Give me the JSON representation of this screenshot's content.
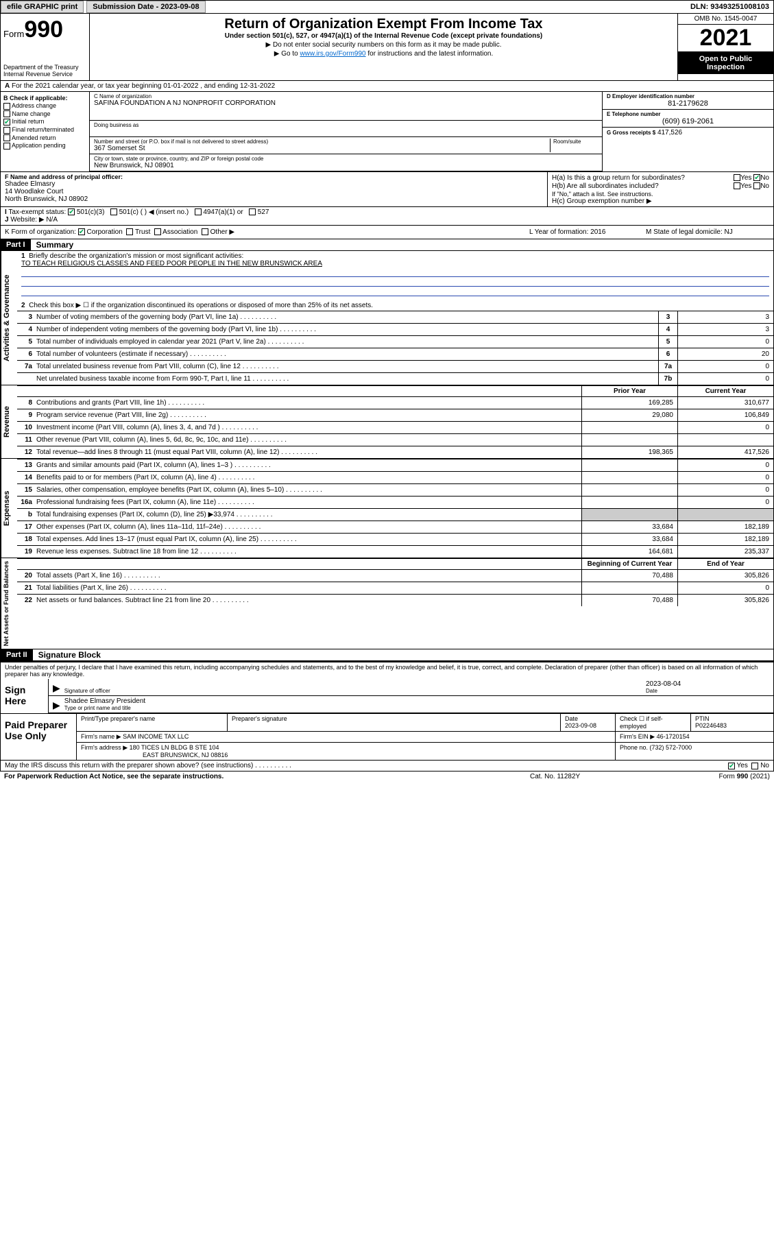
{
  "topbar": {
    "efile": "efile GRAPHIC print",
    "submission_label": "Submission Date - 2023-09-08",
    "dln": "DLN: 93493251008103"
  },
  "header": {
    "form": "Form",
    "form_num": "990",
    "dept": "Department of the Treasury",
    "irs": "Internal Revenue Service",
    "title": "Return of Organization Exempt From Income Tax",
    "subtitle": "Under section 501(c), 527, or 4947(a)(1) of the Internal Revenue Code (except private foundations)",
    "note1": "▶ Do not enter social security numbers on this form as it may be made public.",
    "note2_pre": "▶ Go to ",
    "note2_link": "www.irs.gov/Form990",
    "note2_post": " for instructions and the latest information.",
    "omb": "OMB No. 1545-0047",
    "year": "2021",
    "inspection": "Open to Public Inspection"
  },
  "rowA": "For the 2021 calendar year, or tax year beginning 01-01-2022   , and ending 12-31-2022",
  "sectionB": {
    "label": "B Check if applicable:",
    "items": [
      "Address change",
      "Name change",
      "Initial return",
      "Final return/terminated",
      "Amended return",
      "Application pending"
    ],
    "checked_idx": 2
  },
  "sectionC": {
    "name_label": "C Name of organization",
    "name": "SAFINA FOUNDATION A NJ NONPROFIT CORPORATION",
    "dba_label": "Doing business as",
    "street_label": "Number and street (or P.O. box if mail is not delivered to street address)",
    "street": "367 Somerset St",
    "room_label": "Room/suite",
    "city_label": "City or town, state or province, country, and ZIP or foreign postal code",
    "city": "New Brunswick, NJ  08901"
  },
  "sectionD": {
    "ein_label": "D Employer identification number",
    "ein": "81-2179628",
    "phone_label": "E Telephone number",
    "phone": "(609) 619-2061",
    "gross_label": "G Gross receipts $",
    "gross": "417,526"
  },
  "sectionF": {
    "label": "F Name and address of principal officer:",
    "name": "Shadee Elmasry",
    "addr1": "14 Woodlake Court",
    "addr2": "North Brunswick, NJ  08902"
  },
  "sectionH": {
    "a_label": "H(a) Is this a group return for subordinates?",
    "a_yes": "Yes",
    "a_no": "No",
    "b_label": "H(b) Are all subordinates included?",
    "b_note": "If \"No,\" attach a list. See instructions.",
    "c_label": "H(c) Group exemption number ▶"
  },
  "rowI": {
    "label": "Tax-exempt status:",
    "opts": [
      "501(c)(3)",
      "501(c) (  ) ◀ (insert no.)",
      "4947(a)(1) or",
      "527"
    ]
  },
  "rowJ": {
    "label": "Website: ▶",
    "val": "N/A"
  },
  "rowK": {
    "label": "K Form of organization:",
    "opts": [
      "Corporation",
      "Trust",
      "Association",
      "Other ▶"
    ],
    "L": "L Year of formation: 2016",
    "M": "M State of legal domicile: NJ"
  },
  "parts": {
    "p1": "Part I",
    "p1_title": "Summary",
    "p2": "Part II",
    "p2_title": "Signature Block"
  },
  "summary": {
    "tabs": [
      "Activities & Governance",
      "Revenue",
      "Expenses",
      "Net Assets or Fund Balances"
    ],
    "q1": "Briefly describe the organization's mission or most significant activities:",
    "mission": "TO TEACH RELIGIOUS CLASSES AND FEED POOR PEOPLE IN THE NEW BRUNSWICK AREA",
    "q2": "Check this box ▶ ☐  if the organization discontinued its operations or disposed of more than 25% of its net assets.",
    "lines_gov": [
      {
        "n": "3",
        "t": "Number of voting members of the governing body (Part VI, line 1a)",
        "box": "3",
        "v": "3"
      },
      {
        "n": "4",
        "t": "Number of independent voting members of the governing body (Part VI, line 1b)",
        "box": "4",
        "v": "3"
      },
      {
        "n": "5",
        "t": "Total number of individuals employed in calendar year 2021 (Part V, line 2a)",
        "box": "5",
        "v": "0"
      },
      {
        "n": "6",
        "t": "Total number of volunteers (estimate if necessary)",
        "box": "6",
        "v": "20"
      },
      {
        "n": "7a",
        "t": "Total unrelated business revenue from Part VIII, column (C), line 12",
        "box": "7a",
        "v": "0"
      },
      {
        "n": "",
        "t": "Net unrelated business taxable income from Form 990-T, Part I, line 11",
        "box": "7b",
        "v": "0"
      }
    ],
    "col_hdrs": {
      "prior": "Prior Year",
      "current": "Current Year",
      "beg": "Beginning of Current Year",
      "end": "End of Year"
    },
    "lines_rev": [
      {
        "n": "8",
        "t": "Contributions and grants (Part VIII, line 1h)",
        "p": "169,285",
        "c": "310,677"
      },
      {
        "n": "9",
        "t": "Program service revenue (Part VIII, line 2g)",
        "p": "29,080",
        "c": "106,849"
      },
      {
        "n": "10",
        "t": "Investment income (Part VIII, column (A), lines 3, 4, and 7d )",
        "p": "",
        "c": "0"
      },
      {
        "n": "11",
        "t": "Other revenue (Part VIII, column (A), lines 5, 6d, 8c, 9c, 10c, and 11e)",
        "p": "",
        "c": ""
      },
      {
        "n": "12",
        "t": "Total revenue—add lines 8 through 11 (must equal Part VIII, column (A), line 12)",
        "p": "198,365",
        "c": "417,526"
      }
    ],
    "lines_exp": [
      {
        "n": "13",
        "t": "Grants and similar amounts paid (Part IX, column (A), lines 1–3 )",
        "p": "",
        "c": "0"
      },
      {
        "n": "14",
        "t": "Benefits paid to or for members (Part IX, column (A), line 4)",
        "p": "",
        "c": "0"
      },
      {
        "n": "15",
        "t": "Salaries, other compensation, employee benefits (Part IX, column (A), lines 5–10)",
        "p": "",
        "c": "0"
      },
      {
        "n": "16a",
        "t": "Professional fundraising fees (Part IX, column (A), line 11e)",
        "p": "",
        "c": "0"
      },
      {
        "n": "b",
        "t": "Total fundraising expenses (Part IX, column (D), line 25) ▶33,974",
        "p": "shade",
        "c": "shade"
      },
      {
        "n": "17",
        "t": "Other expenses (Part IX, column (A), lines 11a–11d, 11f–24e)",
        "p": "33,684",
        "c": "182,189"
      },
      {
        "n": "18",
        "t": "Total expenses. Add lines 13–17 (must equal Part IX, column (A), line 25)",
        "p": "33,684",
        "c": "182,189"
      },
      {
        "n": "19",
        "t": "Revenue less expenses. Subtract line 18 from line 12",
        "p": "164,681",
        "c": "235,337"
      }
    ],
    "lines_net": [
      {
        "n": "20",
        "t": "Total assets (Part X, line 16)",
        "p": "70,488",
        "c": "305,826"
      },
      {
        "n": "21",
        "t": "Total liabilities (Part X, line 26)",
        "p": "",
        "c": "0"
      },
      {
        "n": "22",
        "t": "Net assets or fund balances. Subtract line 21 from line 20",
        "p": "70,488",
        "c": "305,826"
      }
    ]
  },
  "sig": {
    "declare": "Under penalties of perjury, I declare that I have examined this return, including accompanying schedules and statements, and to the best of my knowledge and belief, it is true, correct, and complete. Declaration of preparer (other than officer) is based on all information of which preparer has any knowledge.",
    "sign_here": "Sign Here",
    "sig_officer": "Signature of officer",
    "date_label": "Date",
    "date": "2023-08-04",
    "name_title": "Shadee Elmasry  President",
    "type_label": "Type or print name and title"
  },
  "prep": {
    "label": "Paid Preparer Use Only",
    "row1": {
      "c1": "Print/Type preparer's name",
      "c2": "Preparer's signature",
      "c3": "Date",
      "c3v": "2023-09-08",
      "c4": "Check ☐ if self-employed",
      "c5": "PTIN",
      "c5v": "P02246483"
    },
    "row2": {
      "c1": "Firm's name    ▶ SAM INCOME TAX LLC",
      "c2": "Firm's EIN ▶ 46-1720154"
    },
    "row3": {
      "c1": "Firm's address ▶ 180 TICES LN BLDG B STE 104",
      "c2": "Phone no. (732) 572-7000"
    },
    "row3b": "EAST BRUNSWICK, NJ  08816"
  },
  "bottom": {
    "discuss": "May the IRS discuss this return with the preparer shown above? (see instructions)",
    "yes": "Yes",
    "no": "No"
  },
  "footer": {
    "l": "For Paperwork Reduction Act Notice, see the separate instructions.",
    "m": "Cat. No. 11282Y",
    "r": "Form 990 (2021)"
  }
}
